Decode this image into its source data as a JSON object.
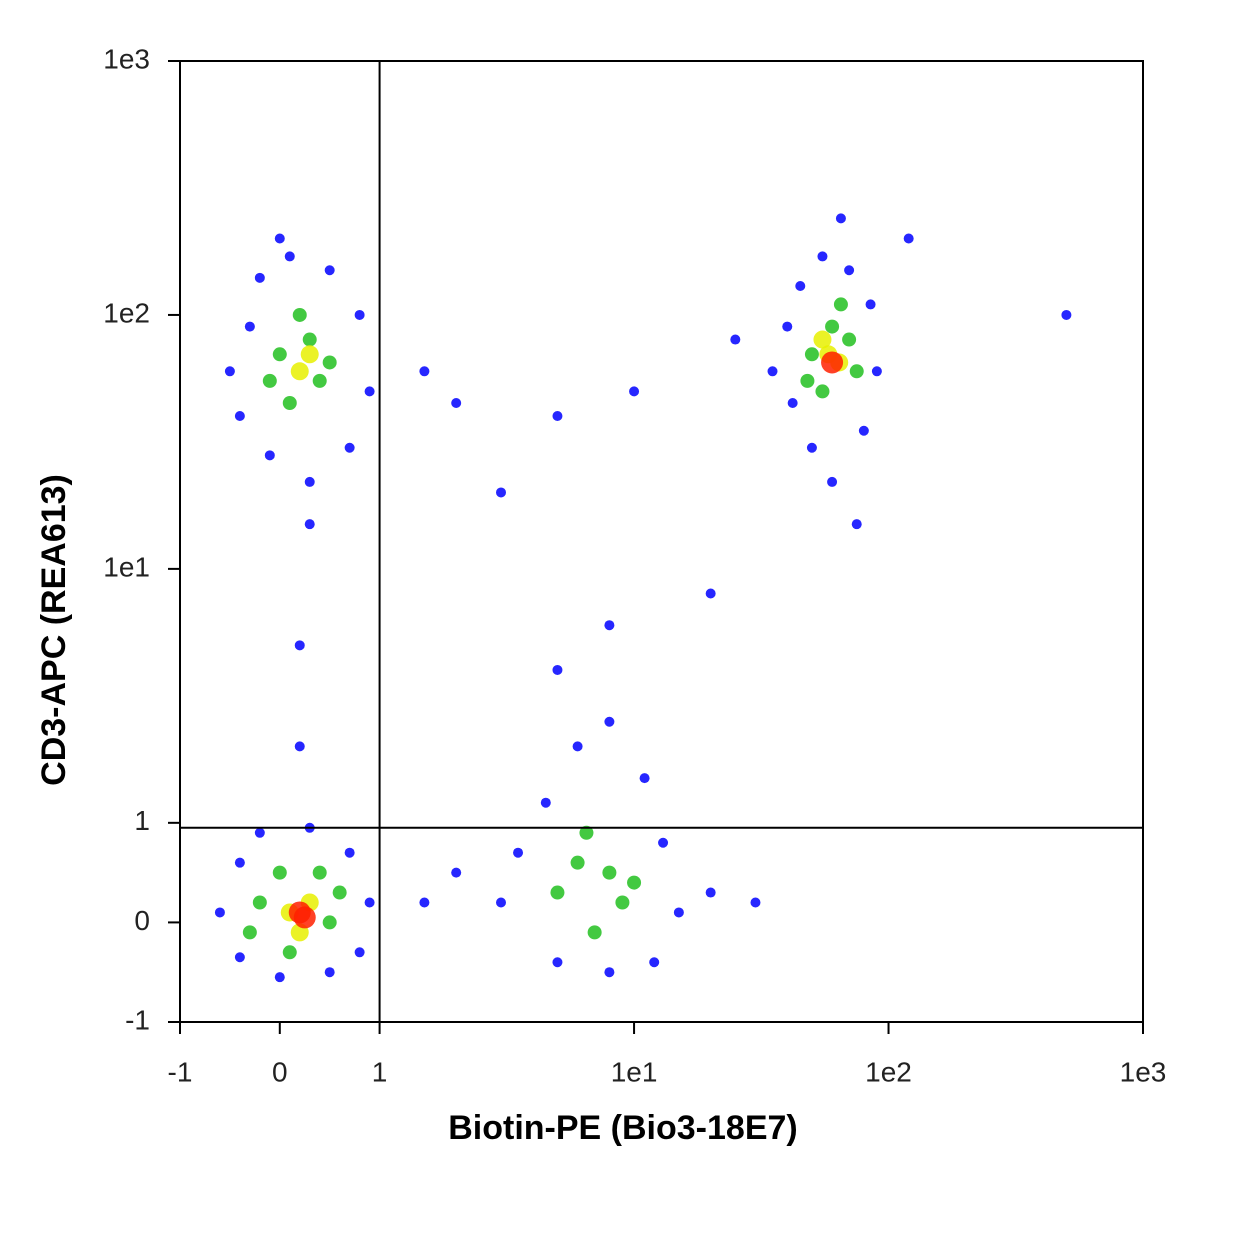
{
  "chart_data": {
    "type": "scatter",
    "xlabel": "Biotin-PE (Bio3-18E7)",
    "ylabel": "CD3-APC (REA613)",
    "xscale": "biexponential",
    "yscale": "biexponential",
    "xlim": [
      -1,
      1000
    ],
    "ylim": [
      -1,
      1000
    ],
    "xticks": [
      -1,
      0,
      1,
      {
        "value": 10,
        "label": "1e1"
      },
      {
        "value": 100,
        "label": "1e2"
      },
      {
        "value": 1000,
        "label": "1e3"
      }
    ],
    "yticks": [
      -1,
      0,
      1,
      {
        "value": 10,
        "label": "1e1"
      },
      {
        "value": 100,
        "label": "1e2"
      },
      {
        "value": 1000,
        "label": "1e3"
      }
    ],
    "quadrant_lines": {
      "x": 1,
      "y": 0.95
    },
    "series": [
      {
        "color": "#0000ff",
        "x": [
          -0.5,
          -0.3,
          -0.2,
          0.1,
          0.5,
          0.8,
          0.9,
          0.7,
          0.3,
          -0.1,
          -0.4,
          0.0,
          1.5,
          2,
          0.3,
          35,
          40,
          45,
          55,
          70,
          85,
          90,
          80,
          60,
          50,
          42,
          65,
          120,
          75,
          25,
          -0.6,
          -0.4,
          -0.2,
          0.3,
          0.7,
          0.9,
          0.8,
          0.5,
          0,
          -0.4,
          1.5,
          0.2,
          0.2,
          3,
          3.5,
          4.5,
          6,
          8,
          11,
          13,
          15,
          12,
          8,
          5,
          20,
          30,
          5,
          8,
          2,
          5,
          3,
          10,
          20,
          500
        ],
        "y": [
          60,
          90,
          140,
          170,
          150,
          100,
          50,
          30,
          22,
          28,
          40,
          200,
          60,
          45,
          15,
          60,
          90,
          130,
          170,
          150,
          110,
          60,
          35,
          22,
          30,
          45,
          240,
          200,
          15,
          80,
          0.1,
          0.6,
          0.9,
          0.95,
          0.7,
          0.2,
          -0.3,
          -0.5,
          -0.55,
          -0.35,
          0.2,
          2,
          5,
          0.2,
          0.7,
          1.2,
          2,
          2.5,
          1.5,
          0.8,
          0.1,
          -0.4,
          -0.5,
          -0.4,
          0.3,
          0.2,
          4,
          6,
          0.5,
          40,
          20,
          50,
          8,
          100
        ]
      },
      {
        "color": "#22c020",
        "x": [
          0,
          0.3,
          0.4,
          0.1,
          0.2,
          0.5,
          -0.1,
          50,
          60,
          70,
          55,
          65,
          75,
          48,
          -0.2,
          0.0,
          0.4,
          0.5,
          0.1,
          -0.3,
          0.6,
          5,
          6,
          8,
          9,
          7,
          10,
          6.5
        ],
        "y": [
          70,
          80,
          55,
          45,
          100,
          65,
          55,
          70,
          90,
          80,
          50,
          110,
          60,
          55,
          0.2,
          0.5,
          0.5,
          0.0,
          -0.3,
          -0.1,
          0.3,
          0.3,
          0.6,
          0.5,
          0.2,
          -0.1,
          0.4,
          0.9
        ]
      },
      {
        "color": "#e8f000",
        "x": [
          0.2,
          0.3,
          58,
          64,
          55,
          0.1,
          0.3,
          0.2
        ],
        "y": [
          60,
          70,
          70,
          65,
          80,
          0.1,
          0.2,
          -0.1
        ]
      },
      {
        "color": "#ff2000",
        "x": [
          60,
          0.2,
          0.25
        ],
        "y": [
          65,
          0.1,
          0.05
        ]
      }
    ]
  }
}
